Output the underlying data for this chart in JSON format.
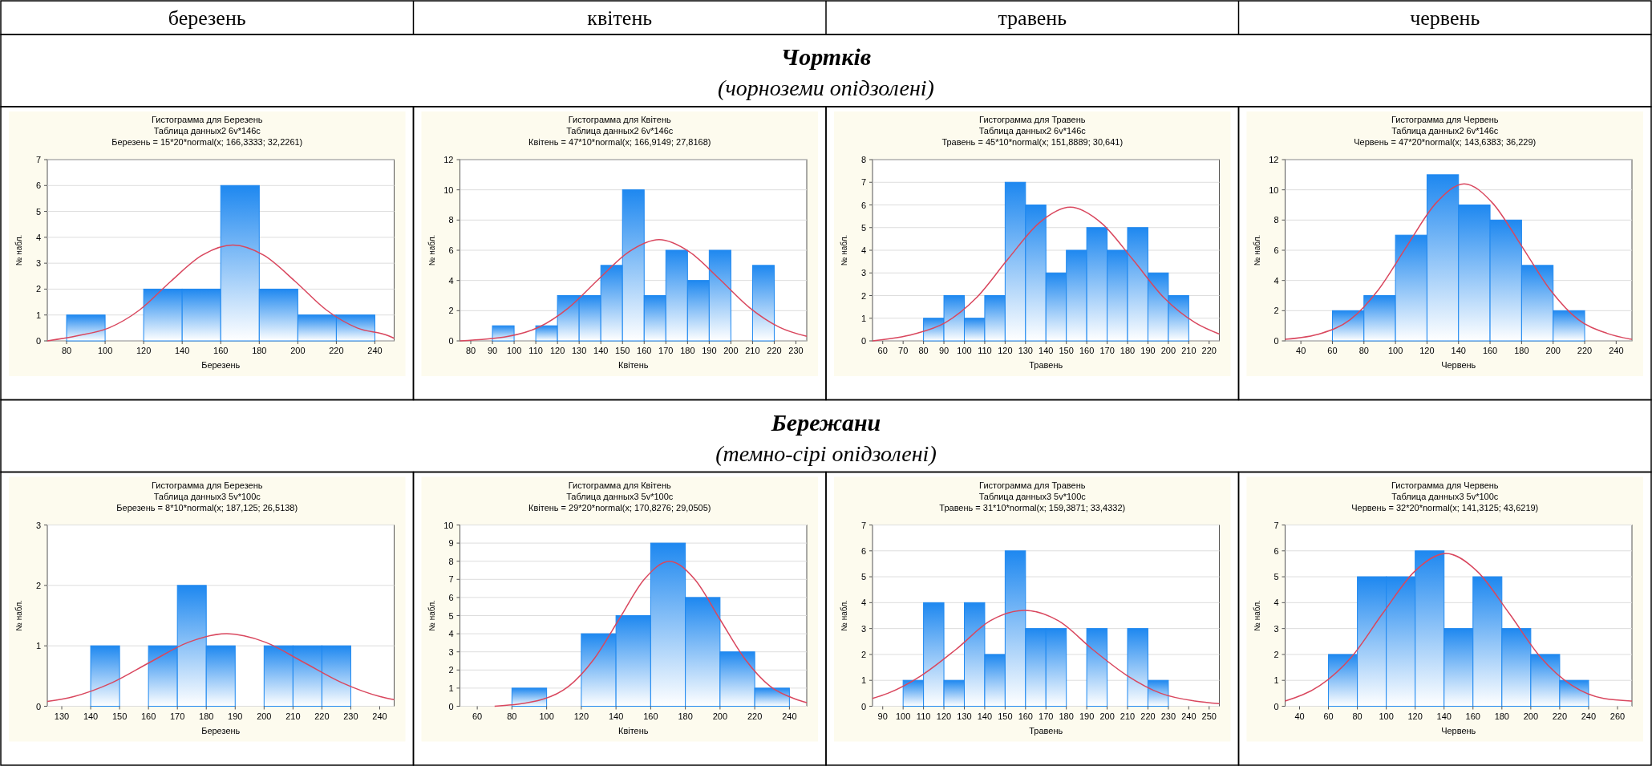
{
  "chart_data": [
    {
      "type": "other",
      "annotations": [
        "березень",
        "квітень",
        "травень",
        "червень"
      ]
    },
    {
      "type": "other",
      "title": "Чортків",
      "subtitle": "(чорноземи опідзолені)"
    },
    {
      "type": "histogram",
      "title": "Гистограмма для Березень",
      "subtitle": "Таблица данных2 6v*146c",
      "annotations": [
        "Березень = 15*20*normal(x; 166,3333; 32,2261)"
      ],
      "xlabel": "Березень",
      "ylabel": "№ набл.",
      "color": "#1e88f0",
      "grid": "y",
      "bins": [
        80,
        100,
        120,
        140,
        160,
        180,
        200,
        220,
        240
      ],
      "values": [
        1,
        0,
        2,
        2,
        6,
        2,
        1,
        1
      ],
      "xlim": [
        70,
        250
      ],
      "xticks": [
        80,
        100,
        120,
        140,
        160,
        180,
        200,
        220,
        240
      ],
      "ylim": [
        0,
        7
      ],
      "yticks": [
        0,
        1,
        2,
        3,
        4,
        5,
        6,
        7
      ],
      "series": [
        {
          "type": "line",
          "color": "#d9475e",
          "x": [
            70,
            85.8,
            101.9,
            118,
            134.1,
            150.2,
            166.3,
            182.5,
            198.6,
            214.7,
            230.8,
            246.9,
            250
          ],
          "values": [
            0,
            0.2,
            0.5,
            1.2,
            2.3,
            3.3,
            3.7,
            3.3,
            2.3,
            1.2,
            0.5,
            0.2,
            0.1
          ]
        }
      ]
    },
    {
      "type": "histogram",
      "title": "Гистограмма для Квітень",
      "subtitle": "Таблица данных2 6v*146c",
      "annotations": [
        "Квітень = 47*10*normal(x; 166,9149; 27,8168)"
      ],
      "xlabel": "Квітень",
      "ylabel": "№ набл.",
      "color": "#1e88f0",
      "grid": "y",
      "bins": [
        90,
        100,
        110,
        120,
        130,
        140,
        150,
        160,
        170,
        180,
        190,
        200,
        210,
        220
      ],
      "values": [
        1,
        0,
        1,
        3,
        3,
        5,
        10,
        3,
        6,
        4,
        6,
        0,
        5
      ],
      "xlim": [
        75,
        235
      ],
      "xticks": [
        80,
        90,
        100,
        110,
        120,
        130,
        140,
        150,
        160,
        170,
        180,
        190,
        200,
        210,
        220,
        230
      ],
      "ylim": [
        0,
        12
      ],
      "yticks": [
        0,
        2,
        4,
        6,
        8,
        10,
        12
      ],
      "series": [
        {
          "type": "line",
          "color": "#d9475e",
          "x": [
            75,
            97.4,
            111.3,
            125.2,
            139.1,
            153,
            166.9,
            180.8,
            194.7,
            208.6,
            222.5,
            235
          ],
          "values": [
            0,
            0.3,
            0.9,
            2.2,
            4.1,
            5.9,
            6.7,
            5.9,
            4.1,
            2.2,
            0.9,
            0.3
          ]
        }
      ]
    },
    {
      "type": "histogram",
      "title": "Гистограмма для Травень",
      "subtitle": "Таблица данных2 6v*146c",
      "annotations": [
        "Травень = 45*10*normal(x; 151,8889; 30,641)"
      ],
      "xlabel": "Травень",
      "ylabel": "№ набл.",
      "color": "#1e88f0",
      "grid": "y",
      "bins": [
        80,
        90,
        100,
        110,
        120,
        130,
        140,
        150,
        160,
        170,
        180,
        190,
        200,
        210
      ],
      "values": [
        1,
        2,
        1,
        2,
        7,
        6,
        3,
        4,
        5,
        4,
        5,
        3,
        2
      ],
      "xlim": [
        55,
        225
      ],
      "xticks": [
        60,
        70,
        80,
        90,
        100,
        110,
        120,
        130,
        140,
        150,
        160,
        170,
        180,
        190,
        200,
        210,
        220
      ],
      "ylim": [
        0,
        8
      ],
      "yticks": [
        0,
        1,
        2,
        3,
        4,
        5,
        6,
        7,
        8
      ],
      "series": [
        {
          "type": "line",
          "color": "#d9475e",
          "x": [
            55,
            75.3,
            90.6,
            105.9,
            121.3,
            136.6,
            151.9,
            167.2,
            182.5,
            197.9,
            213.2,
            225
          ],
          "values": [
            0,
            0.3,
            0.8,
            1.9,
            3.6,
            5.2,
            5.9,
            5.2,
            3.6,
            1.9,
            0.8,
            0.3
          ]
        }
      ]
    },
    {
      "type": "histogram",
      "title": "Гистограмма для Червень",
      "subtitle": "Таблица данных2 6v*146c",
      "annotations": [
        "Червень = 47*20*normal(x; 143,6383; 36,229)"
      ],
      "xlabel": "Червень",
      "ylabel": "№ набл.",
      "color": "#1e88f0",
      "grid": "y",
      "bins": [
        60,
        80,
        100,
        120,
        140,
        160,
        180,
        200,
        220
      ],
      "values": [
        2,
        3,
        7,
        11,
        9,
        8,
        5,
        2
      ],
      "xlim": [
        30,
        250
      ],
      "xticks": [
        40,
        60,
        80,
        100,
        120,
        140,
        160,
        180,
        200,
        220,
        240
      ],
      "ylim": [
        0,
        12
      ],
      "yticks": [
        0,
        2,
        4,
        6,
        8,
        10,
        12
      ],
      "series": [
        {
          "type": "line",
          "color": "#d9475e",
          "x": [
            30,
            53.1,
            71.2,
            89.3,
            107.4,
            125.5,
            143.6,
            161.8,
            179.9,
            198,
            216.1,
            234.2,
            250
          ],
          "values": [
            0.1,
            0.5,
            1.4,
            3.4,
            6.3,
            9.1,
            10.4,
            9.1,
            6.3,
            3.4,
            1.4,
            0.5,
            0.1
          ]
        }
      ]
    },
    {
      "type": "other",
      "title": "Бережани",
      "subtitle": "(темно-сірі опідзолені)"
    },
    {
      "type": "histogram",
      "title": "Гистограмма для Березень",
      "subtitle": "Таблица данных3 5v*100c",
      "annotations": [
        "Березень = 8*10*normal(x; 187,125; 26,5138)"
      ],
      "xlabel": "Березень",
      "ylabel": "№ набл.",
      "color": "#1e88f0",
      "grid": "y",
      "bins": [
        140,
        150,
        160,
        170,
        180,
        190,
        200,
        210,
        220,
        230
      ],
      "values": [
        1,
        0,
        1,
        2,
        1,
        0,
        1,
        1,
        1
      ],
      "xlim": [
        125,
        245
      ],
      "xticks": [
        130,
        140,
        150,
        160,
        170,
        180,
        190,
        200,
        210,
        220,
        230,
        240
      ],
      "ylim": [
        0,
        3
      ],
      "yticks": [
        0,
        1,
        2,
        3
      ],
      "series": [
        {
          "type": "line",
          "color": "#d9475e",
          "x": [
            125,
            134.1,
            147.4,
            160.6,
            173.9,
            187.1,
            200.4,
            213.6,
            226.9,
            240.2,
            245
          ],
          "values": [
            0.08,
            0.16,
            0.39,
            0.73,
            1.06,
            1.2,
            1.06,
            0.73,
            0.39,
            0.16,
            0.11
          ]
        }
      ]
    },
    {
      "type": "histogram",
      "title": "Гистограмма для Квітень",
      "subtitle": "Таблица данных3 5v*100c",
      "annotations": [
        "Квітень = 29*20*normal(x; 170,8276; 29,0505)"
      ],
      "xlabel": "Квітень",
      "ylabel": "№ набл.",
      "color": "#1e88f0",
      "grid": "y",
      "bins": [
        80,
        100,
        120,
        140,
        160,
        180,
        200,
        220,
        240
      ],
      "values": [
        1,
        0,
        4,
        5,
        9,
        6,
        3,
        1
      ],
      "xlim": [
        50,
        250
      ],
      "xticks": [
        60,
        80,
        100,
        120,
        140,
        160,
        180,
        200,
        220,
        240
      ],
      "ylim": [
        0,
        10
      ],
      "yticks": [
        0,
        1,
        2,
        3,
        4,
        5,
        6,
        7,
        8,
        9,
        10
      ],
      "series": [
        {
          "type": "line",
          "color": "#d9475e",
          "x": [
            70,
            98.2,
            112.7,
            127.3,
            141.8,
            156.3,
            170.8,
            185.4,
            199.9,
            214.4,
            228.9,
            243.4,
            250
          ],
          "values": [
            0,
            0.4,
            1.1,
            2.6,
            4.8,
            7,
            8,
            7,
            4.8,
            2.6,
            1.1,
            0.4,
            0.2
          ]
        }
      ]
    },
    {
      "type": "histogram",
      "title": "Гистограмма для Травень",
      "subtitle": "Таблица данных3 5v*100c",
      "annotations": [
        "Травень = 31*10*normal(x; 159,3871; 33,4332)"
      ],
      "xlabel": "Травень",
      "ylabel": "№ набл.",
      "color": "#1e88f0",
      "grid": "y",
      "bins": [
        100,
        110,
        120,
        130,
        140,
        150,
        160,
        170,
        180,
        190,
        200,
        210,
        220,
        230
      ],
      "values": [
        1,
        4,
        1,
        4,
        2,
        6,
        3,
        3,
        0,
        3,
        0,
        3,
        1
      ],
      "xlim": [
        85,
        255
      ],
      "xticks": [
        90,
        100,
        110,
        120,
        130,
        140,
        150,
        160,
        170,
        180,
        190,
        200,
        210,
        220,
        230,
        240,
        250
      ],
      "ylim": [
        0,
        7
      ],
      "yticks": [
        0,
        1,
        2,
        3,
        4,
        5,
        6,
        7
      ],
      "series": [
        {
          "type": "line",
          "color": "#d9475e",
          "x": [
            85,
            92.5,
            109.2,
            126,
            142.7,
            159.4,
            176.1,
            192.8,
            209.5,
            226.3,
            243,
            255
          ],
          "values": [
            0.3,
            0.5,
            1.2,
            2.2,
            3.3,
            3.7,
            3.3,
            2.2,
            1.2,
            0.5,
            0.2,
            0.1
          ]
        }
      ]
    },
    {
      "type": "histogram",
      "title": "Гистограмма для Червень",
      "subtitle": "Таблица данных3 5v*100c",
      "annotations": [
        "Червень = 32*20*normal(x; 141,3125; 43,6219)"
      ],
      "xlabel": "Червень",
      "ylabel": "№ набл.",
      "color": "#1e88f0",
      "grid": "y",
      "bins": [
        60,
        80,
        100,
        120,
        140,
        160,
        180,
        200,
        220,
        240
      ],
      "values": [
        2,
        5,
        5,
        6,
        3,
        5,
        3,
        2,
        1
      ],
      "xlim": [
        30,
        270
      ],
      "xticks": [
        40,
        60,
        80,
        100,
        120,
        140,
        160,
        180,
        200,
        220,
        240,
        260
      ],
      "ylim": [
        0,
        7
      ],
      "yticks": [
        0,
        1,
        2,
        3,
        4,
        5,
        6,
        7
      ],
      "series": [
        {
          "type": "line",
          "color": "#d9475e",
          "x": [
            30,
            54.1,
            75.9,
            97.7,
            119.5,
            141.3,
            163.1,
            184.9,
            206.7,
            228.6,
            250.4,
            270
          ],
          "values": [
            0.2,
            0.8,
            1.9,
            3.6,
            5.2,
            5.9,
            5.2,
            3.6,
            1.9,
            0.8,
            0.3,
            0.2
          ]
        }
      ]
    }
  ]
}
